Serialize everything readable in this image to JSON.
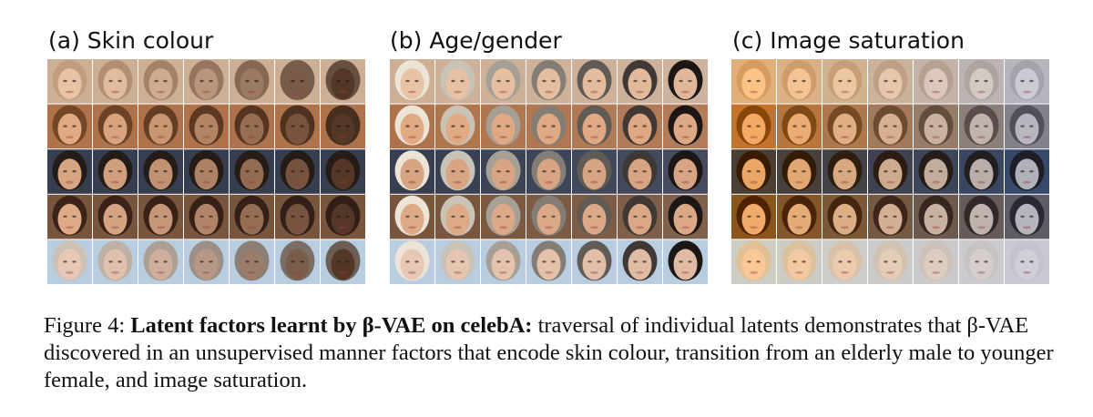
{
  "panels": [
    {
      "label": "(a) Skin colour"
    },
    {
      "label": "(b) Age/gender"
    },
    {
      "label": "(c) Image saturation"
    }
  ],
  "caption": {
    "label": "Figure 4:",
    "bold": "Latent factors learnt by β-VAE on celebA:",
    "text": "traversal of individual latents demonstrates that β-VAE discovered in an unsupervised manner factors that encode skin colour, transition from an elderly male to younger female, and image saturation."
  }
}
